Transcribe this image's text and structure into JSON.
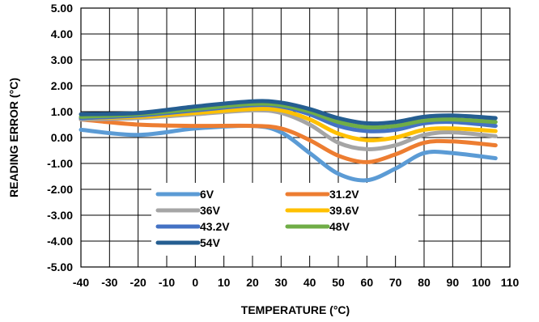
{
  "chart_data": {
    "type": "line",
    "xlabel": "TEMPERATURE (°C)",
    "ylabel": "READING ERROR (°C)",
    "xlim": [
      -40,
      110
    ],
    "ylim": [
      -5,
      5
    ],
    "x_ticks": [
      "-40",
      "-30",
      "-20",
      "-10",
      "0",
      "10",
      "20",
      "30",
      "40",
      "50",
      "60",
      "70",
      "80",
      "90",
      "100",
      "110"
    ],
    "y_ticks": [
      "5.00",
      "4.00",
      "3.00",
      "2.00",
      "1.00",
      "0.00",
      "-1.00",
      "-2.00",
      "-3.00",
      "-4.00",
      "-5.00"
    ],
    "grid": true,
    "legend_position": "bottom-center",
    "x": [
      -40,
      -20,
      0,
      20,
      30,
      40,
      50,
      60,
      70,
      80,
      90,
      105
    ],
    "series": [
      {
        "name": "6V",
        "color": "#5B9BD5",
        "values": [
          0.3,
          0.1,
          0.35,
          0.45,
          0.2,
          -0.6,
          -1.4,
          -1.65,
          -1.2,
          -0.6,
          -0.6,
          -0.8
        ]
      },
      {
        "name": "31.2V",
        "color": "#ED7D31",
        "values": [
          0.7,
          0.5,
          0.45,
          0.45,
          0.35,
          -0.1,
          -0.7,
          -0.95,
          -0.65,
          -0.2,
          -0.15,
          -0.3
        ]
      },
      {
        "name": "36V",
        "color": "#A5A5A5",
        "values": [
          0.7,
          0.75,
          0.9,
          1.05,
          0.95,
          0.5,
          -0.2,
          -0.45,
          -0.3,
          0.1,
          0.2,
          0.05
        ]
      },
      {
        "name": "39.6V",
        "color": "#FFC000",
        "values": [
          0.75,
          0.8,
          0.95,
          1.1,
          1.05,
          0.7,
          0.15,
          -0.1,
          0.0,
          0.3,
          0.35,
          0.25
        ]
      },
      {
        "name": "43.2V",
        "color": "#4472C4",
        "values": [
          0.75,
          0.85,
          1.05,
          1.25,
          1.2,
          0.9,
          0.45,
          0.25,
          0.3,
          0.55,
          0.6,
          0.45
        ]
      },
      {
        "name": "48V",
        "color": "#70AD47",
        "values": [
          0.8,
          0.9,
          1.1,
          1.3,
          1.25,
          1.0,
          0.6,
          0.4,
          0.45,
          0.65,
          0.7,
          0.6
        ]
      },
      {
        "name": "54V",
        "color": "#255E91",
        "values": [
          0.9,
          0.95,
          1.2,
          1.4,
          1.35,
          1.1,
          0.75,
          0.55,
          0.6,
          0.8,
          0.85,
          0.75
        ]
      }
    ]
  }
}
